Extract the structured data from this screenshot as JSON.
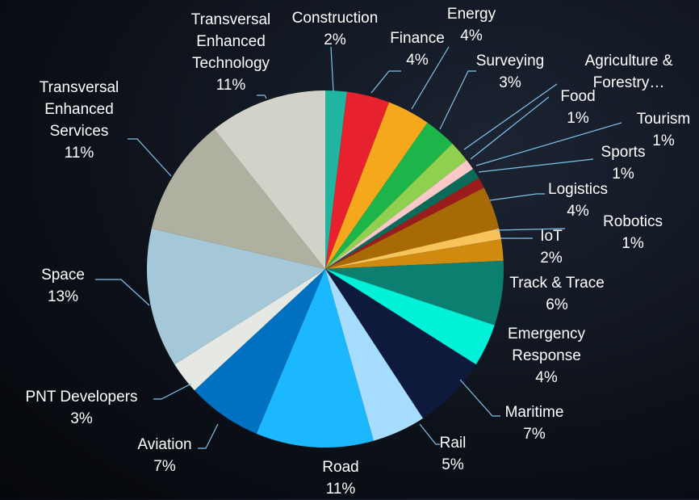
{
  "chart_data": {
    "type": "pie",
    "categories": [
      "Construction",
      "Finance",
      "Energy",
      "Surveying",
      "Agriculture & Forestry…",
      "Food",
      "Tourism",
      "Sports",
      "Logistics",
      "Robotics",
      "IoT",
      "Track & Trace",
      "Emergency Response",
      "Maritime",
      "Rail",
      "Road",
      "Aviation",
      "PNT Developers",
      "Space",
      "Transversal Enhanced Services",
      "Transversal Enhanced Technology"
    ],
    "values": [
      2,
      4,
      4,
      3,
      2,
      1,
      1,
      1,
      4,
      1,
      2,
      6,
      4,
      7,
      5,
      11,
      7,
      3,
      13,
      11,
      11
    ],
    "value_labels": [
      "2%",
      "4%",
      "4%",
      "3%",
      null,
      "1%",
      "1%",
      "1%",
      "4%",
      "1%",
      "2%",
      "6%",
      "4%",
      "7%",
      "5%",
      "11%",
      "7%",
      "3%",
      "13%",
      "11%",
      "11%"
    ],
    "colors": [
      "#1fb5a0",
      "#e8212f",
      "#f5a81b",
      "#1db54a",
      "#8fd14f",
      "#f9c9c8",
      "#0b6b5a",
      "#9b1c1c",
      "#a86a06",
      "#f7c35a",
      "#cf8a10",
      "#0b8070",
      "#00f0d8",
      "#0e1a3c",
      "#a6ddff",
      "#1bb8ff",
      "#0070c0",
      "#e6e8e4",
      "#a4c8d8",
      "#b0b0a0",
      "#d2d2c8"
    ]
  }
}
